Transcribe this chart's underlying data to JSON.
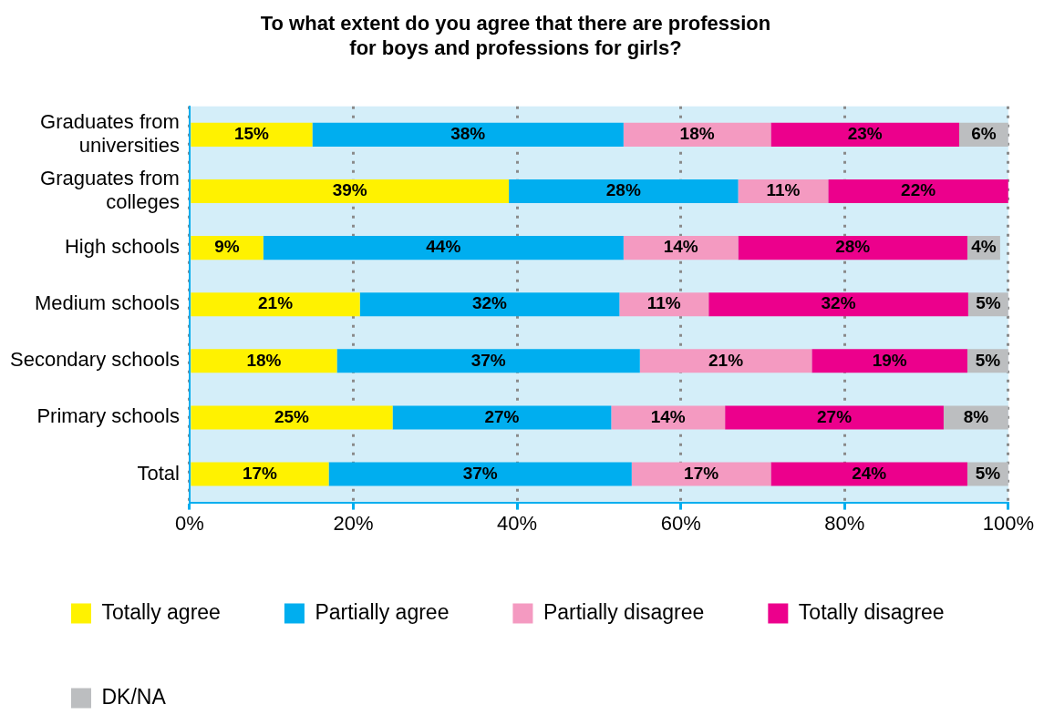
{
  "chart_data": {
    "type": "bar",
    "orientation": "horizontal",
    "stacked": true,
    "title": "To what extent do you agree that there are profession for boys and professions for girls?",
    "categories": [
      "Graduates from universities",
      "Graguates from colleges",
      "High schools",
      "Medium schools",
      "Secondary schools",
      "Primary schools",
      "Total"
    ],
    "series": [
      {
        "name": "Totally agree",
        "color": "#fff200",
        "values": [
          15,
          39,
          9,
          20.8,
          18,
          24.8,
          17
        ],
        "value_labels": [
          "15%",
          "39%",
          "9%",
          "21%",
          "18%",
          "25%",
          "17%"
        ]
      },
      {
        "name": "Partially agree",
        "color": "#00aeef",
        "values": [
          38,
          28,
          44,
          31.7,
          37,
          26.7,
          37
        ],
        "value_labels": [
          "38%",
          "28%",
          "44%",
          "32%",
          "37%",
          "27%",
          "37%"
        ]
      },
      {
        "name": "Partially disagree",
        "color": "#f49ac1",
        "values": [
          18,
          11,
          14,
          10.9,
          21,
          13.9,
          17
        ],
        "value_labels": [
          "18%",
          "11%",
          "14%",
          "11%",
          "21%",
          "14%",
          "17%"
        ]
      },
      {
        "name": "Totally disagree",
        "color": "#ec008c",
        "values": [
          23,
          22,
          28,
          31.7,
          19,
          26.7,
          24
        ],
        "value_labels": [
          "23%",
          "22%",
          "28%",
          "32%",
          "19%",
          "27%",
          "24%"
        ]
      },
      {
        "name": "DK/NA",
        "color": "#bcbec0",
        "values": [
          6,
          null,
          4,
          4.9,
          5,
          7.9,
          5
        ],
        "value_labels": [
          "6%",
          null,
          "4%",
          "5%",
          "5%",
          "8%",
          "5%"
        ]
      }
    ],
    "xlim": [
      0,
      100
    ],
    "xticks": [
      {
        "value": 0,
        "label": "0%"
      },
      {
        "value": 20,
        "label": "20%"
      },
      {
        "value": 40,
        "label": "40%"
      },
      {
        "value": 60,
        "label": "60%"
      },
      {
        "value": 80,
        "label": "80%"
      },
      {
        "value": 100,
        "label": "100%"
      }
    ],
    "grid": "x",
    "legend": "bottom"
  }
}
